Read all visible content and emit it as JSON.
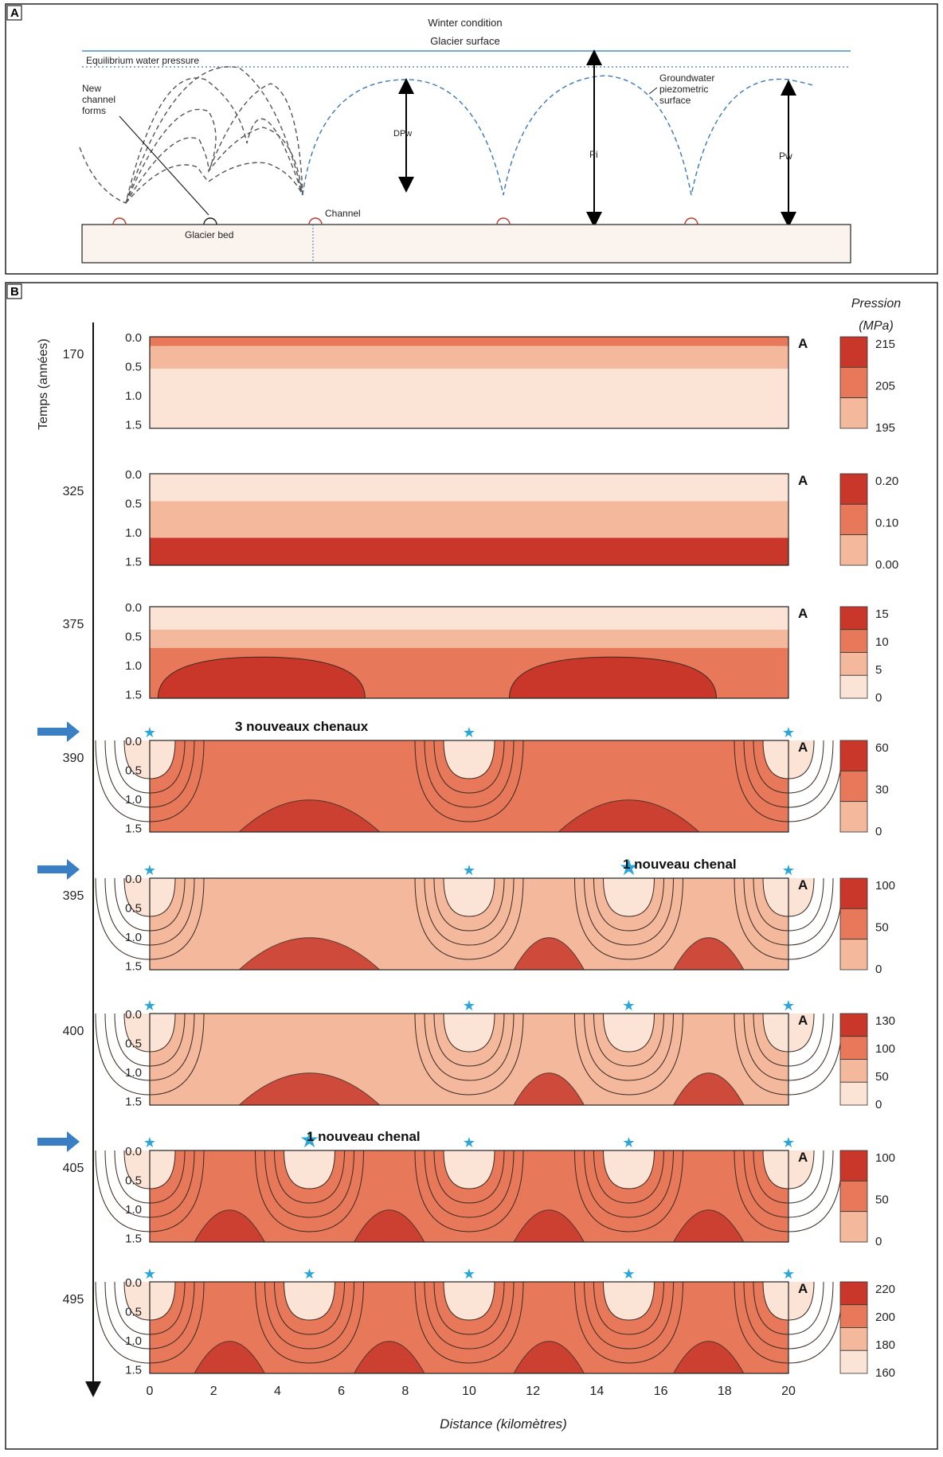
{
  "panel_a": {
    "label": "A",
    "title_line1": "Winter condition",
    "title_line2": "Glacier surface",
    "equilibrium_label": "Equilibrium water pressure",
    "new_channel_label": [
      "New",
      "channel",
      "forms"
    ],
    "dpw_label": "DPw",
    "groundwater_label": [
      "Groundwater",
      "piezometric",
      "surface"
    ],
    "pi_label": "Pi",
    "pw_label": "Pw",
    "channel_label": "Channel",
    "glacier_bed_label": "Glacier bed",
    "colors": {
      "surface_line": "#4a8fc0",
      "dashed_blue": "#3b78b8",
      "channel": "#c0392b"
    }
  },
  "panel_b": {
    "label": "B",
    "time_axis_label": "Temps (années)",
    "x_axis_label": "Distance (kilomètres)",
    "x_ticks": [
      "0",
      "2",
      "4",
      "6",
      "8",
      "10",
      "12",
      "14",
      "16",
      "18",
      "20"
    ],
    "y_ticks": [
      "0.0",
      "0.5",
      "1.0",
      "1.5"
    ],
    "corner_label": "A",
    "legend_title_line1": "Pression",
    "legend_title_line2": "(MPa)",
    "rows": [
      {
        "time": "170",
        "legend": [
          "215",
          "205",
          "195"
        ],
        "arrow": false,
        "annotation": ""
      },
      {
        "time": "325",
        "legend": [
          "0.20",
          "0.10",
          "0.00"
        ],
        "arrow": false,
        "annotation": ""
      },
      {
        "time": "375",
        "legend": [
          "15",
          "10",
          "5",
          "0"
        ],
        "arrow": false,
        "annotation": ""
      },
      {
        "time": "390",
        "legend": [
          "60",
          "30",
          "0"
        ],
        "arrow": true,
        "annotation": "3 nouveaux chenaux"
      },
      {
        "time": "395",
        "legend": [
          "100",
          "50",
          "0"
        ],
        "arrow": true,
        "annotation": "1 nouveau chenal"
      },
      {
        "time": "400",
        "legend": [
          "130",
          "100",
          "50",
          "0"
        ],
        "arrow": false,
        "annotation": ""
      },
      {
        "time": "405",
        "legend": [
          "100",
          "50",
          "0"
        ],
        "arrow": true,
        "annotation": "1 nouveau chenal"
      },
      {
        "time": "495",
        "legend": [
          "220",
          "200",
          "180",
          "160"
        ],
        "arrow": false,
        "annotation": ""
      }
    ],
    "colors": {
      "dark": "#c8372a",
      "mid": "#e8785a",
      "light": "#f4b89c",
      "pale": "#fbe3d6",
      "star": "#2aa7d8",
      "arrow": "#3a7fc4"
    }
  }
}
